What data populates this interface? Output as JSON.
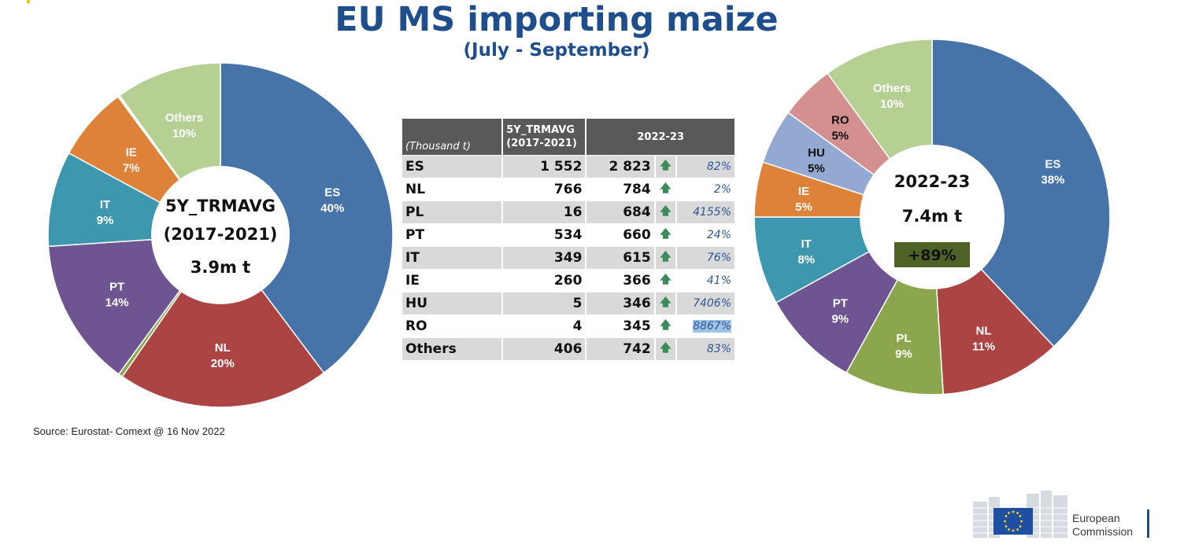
{
  "title": "EU MS importing maize",
  "subtitle": "(July - September)",
  "source": "Source: Eurostat- Comext @ 16 Nov 2022",
  "brand": {
    "line1": "European",
    "line2": "Commission"
  },
  "colors": {
    "ES": "#4674a9",
    "NL": "#ab4442",
    "PL": "#8ba64c",
    "PT": "#6e5491",
    "IT": "#3d97af",
    "IE": "#de823a",
    "HU": "#93a9d2",
    "RO": "#d4908f",
    "Others": "#b6cf93",
    "title": "#1f4e8c",
    "badge": "#4e6228",
    "arrow": "#3c8c5a"
  },
  "chart_data": [
    {
      "type": "pie",
      "chart": "left-donut",
      "center_lines": [
        "5Y_TRMAVG",
        "(2017-2021)",
        "3.9m t"
      ],
      "slices": [
        {
          "name": "ES",
          "value": 40,
          "label": "40%",
          "color": "#4674a9",
          "label_color": "#ffffff"
        },
        {
          "name": "NL",
          "value": 20,
          "label": "20%",
          "color": "#ab4442",
          "label_color": "#ffffff"
        },
        {
          "name": "PL",
          "value": 0.4,
          "label": "",
          "color": "#8ba64c",
          "label_color": "#ffffff"
        },
        {
          "name": "PT",
          "value": 14,
          "label": "14%",
          "color": "#6e5491",
          "label_color": "#ffffff"
        },
        {
          "name": "IT",
          "value": 9,
          "label": "9%",
          "color": "#3d97af",
          "label_color": "#ffffff"
        },
        {
          "name": "IE",
          "value": 7,
          "label": "7%",
          "color": "#de823a",
          "label_color": "#ffffff"
        },
        {
          "name": "HU",
          "value": 0.1,
          "label": "",
          "color": "#93a9d2",
          "label_color": "#ffffff"
        },
        {
          "name": "RO",
          "value": 0.1,
          "label": "",
          "color": "#d4908f",
          "label_color": "#ffffff"
        },
        {
          "name": "Others",
          "value": 10,
          "label": "10%",
          "color": "#b6cf93",
          "label_color": "#ffffff"
        }
      ]
    },
    {
      "type": "pie",
      "chart": "right-donut",
      "center_lines": [
        "2022-23",
        "7.4m t"
      ],
      "badge": "+89%",
      "slices": [
        {
          "name": "ES",
          "value": 38,
          "label": "38%",
          "color": "#4674a9",
          "label_color": "#ffffff"
        },
        {
          "name": "NL",
          "value": 11,
          "label": "11%",
          "color": "#ab4442",
          "label_color": "#ffffff"
        },
        {
          "name": "PL",
          "value": 9,
          "label": "9%",
          "color": "#8ba64c",
          "label_color": "#ffffff"
        },
        {
          "name": "PT",
          "value": 9,
          "label": "9%",
          "color": "#6e5491",
          "label_color": "#ffffff"
        },
        {
          "name": "IT",
          "value": 8,
          "label": "8%",
          "color": "#3d97af",
          "label_color": "#ffffff"
        },
        {
          "name": "IE",
          "value": 5,
          "label": "5%",
          "color": "#de823a",
          "label_color": "#ffffff"
        },
        {
          "name": "HU",
          "value": 5,
          "label": "5%",
          "color": "#93a9d2",
          "label_color": "#111111"
        },
        {
          "name": "RO",
          "value": 5,
          "label": "5%",
          "color": "#d4908f",
          "label_color": "#111111"
        },
        {
          "name": "Others",
          "value": 10,
          "label": "10%",
          "color": "#b6cf93",
          "label_color": "#ffffff"
        }
      ]
    },
    {
      "type": "table",
      "chart": "import-table",
      "unit": "(Thousand t)",
      "col_avg": [
        "5Y_TRMAVG",
        "(2017-2021)"
      ],
      "col_cur": "2022-23",
      "rows": [
        {
          "name": "ES",
          "avg": "1 552",
          "cur": "2 823",
          "pct": "82%"
        },
        {
          "name": "NL",
          "avg": "766",
          "cur": "784",
          "pct": "2%"
        },
        {
          "name": "PL",
          "avg": "16",
          "cur": "684",
          "pct": "4155%"
        },
        {
          "name": "PT",
          "avg": "534",
          "cur": "660",
          "pct": "24%"
        },
        {
          "name": "IT",
          "avg": "349",
          "cur": "615",
          "pct": "76%"
        },
        {
          "name": "IE",
          "avg": "260",
          "cur": "366",
          "pct": "41%"
        },
        {
          "name": "HU",
          "avg": "5",
          "cur": "346",
          "pct": "7406%"
        },
        {
          "name": "RO",
          "avg": "4",
          "cur": "345",
          "pct": "8867%"
        },
        {
          "name": "Others",
          "avg": "406",
          "cur": "742",
          "pct": "83%"
        }
      ]
    }
  ]
}
